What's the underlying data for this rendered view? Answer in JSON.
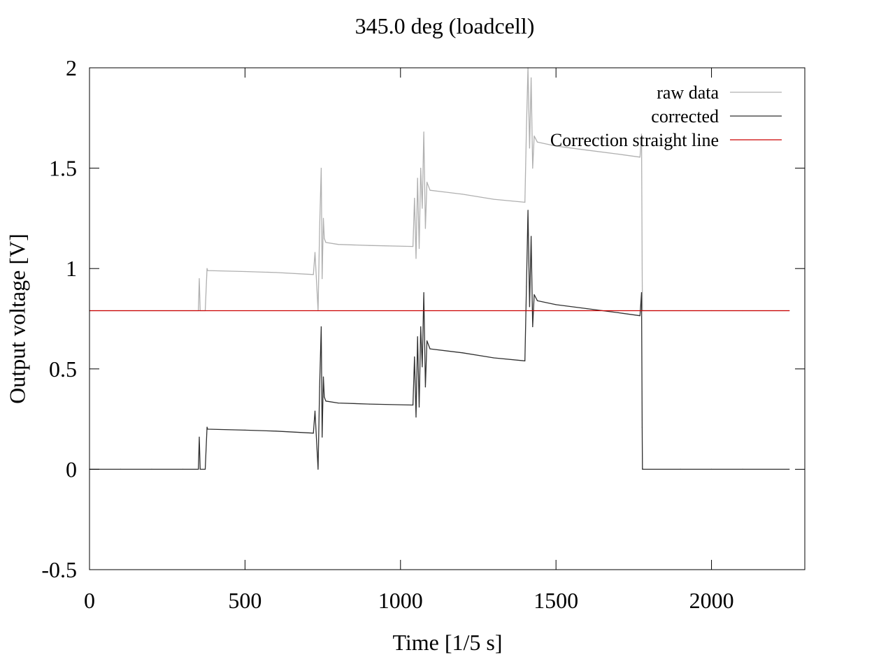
{
  "chart_data": {
    "type": "line",
    "title": "345.0 deg (loadcell)",
    "xlabel": "Time [1/5 s]",
    "ylabel": "Output voltage [V]",
    "xlim": [
      0,
      2300
    ],
    "ylim": [
      -0.5,
      2
    ],
    "xticks": [
      0,
      500,
      1000,
      1500,
      2000
    ],
    "xtick_labels": [
      "0",
      "500",
      "1000",
      "1500",
      "2000"
    ],
    "yticks": [
      -0.5,
      0,
      0.5,
      1,
      1.5,
      2
    ],
    "ytick_labels": [
      "-0.5",
      "0",
      "0.5",
      "1",
      "1.5",
      "2"
    ],
    "grid": false,
    "legend_position": "top-right",
    "series": [
      {
        "name": "raw data",
        "color": "#b0b0b0",
        "x": [
          0,
          350,
          353,
          356,
          372,
          378,
          380,
          500,
          600,
          720,
          725,
          735,
          740,
          745,
          748,
          752,
          755,
          760,
          800,
          900,
          1040,
          1045,
          1050,
          1055,
          1060,
          1065,
          1070,
          1075,
          1080,
          1085,
          1095,
          1200,
          1300,
          1400,
          1405,
          1410,
          1415,
          1420,
          1425,
          1430,
          1440,
          1500,
          1600,
          1700,
          1770,
          1775,
          1777,
          1778,
          1780,
          1900,
          2000,
          2100,
          2250
        ],
        "y": [
          0.79,
          0.79,
          0.95,
          0.79,
          0.79,
          1.0,
          0.99,
          0.985,
          0.98,
          0.97,
          1.08,
          0.79,
          1.2,
          1.5,
          0.95,
          1.25,
          1.15,
          1.13,
          1.12,
          1.115,
          1.11,
          1.35,
          1.05,
          1.45,
          1.1,
          1.5,
          1.3,
          1.68,
          1.2,
          1.43,
          1.39,
          1.37,
          1.345,
          1.33,
          1.7,
          2.0,
          1.6,
          1.95,
          1.5,
          1.66,
          1.63,
          1.61,
          1.59,
          1.57,
          1.555,
          1.67,
          1.0,
          0.79,
          0.79,
          0.79,
          0.79,
          0.79,
          0.79
        ]
      },
      {
        "name": "corrected",
        "color": "#303030",
        "x": [
          0,
          100,
          200,
          300,
          350,
          353,
          356,
          372,
          378,
          380,
          500,
          600,
          720,
          725,
          735,
          740,
          745,
          748,
          752,
          755,
          760,
          800,
          900,
          1040,
          1045,
          1050,
          1055,
          1060,
          1065,
          1070,
          1075,
          1080,
          1085,
          1095,
          1200,
          1300,
          1400,
          1405,
          1410,
          1415,
          1420,
          1425,
          1430,
          1440,
          1500,
          1600,
          1700,
          1770,
          1775,
          1777,
          1778,
          1780,
          1900,
          2000,
          2100,
          2250
        ],
        "y": [
          0.0,
          0.0,
          0.0,
          0.0,
          0.0,
          0.16,
          0.0,
          0.0,
          0.21,
          0.2,
          0.195,
          0.19,
          0.18,
          0.29,
          0.0,
          0.41,
          0.71,
          0.16,
          0.46,
          0.36,
          0.34,
          0.33,
          0.325,
          0.32,
          0.56,
          0.26,
          0.66,
          0.31,
          0.71,
          0.51,
          0.88,
          0.41,
          0.64,
          0.6,
          0.58,
          0.555,
          0.54,
          0.91,
          1.29,
          0.81,
          1.16,
          0.71,
          0.87,
          0.84,
          0.82,
          0.8,
          0.78,
          0.765,
          0.88,
          0.21,
          0.0,
          0.0,
          0.0,
          0.0,
          0.0,
          0.0
        ]
      },
      {
        "name": "Correction straight line",
        "color": "#cc0000",
        "x": [
          0,
          2250
        ],
        "y": [
          0.79,
          0.79
        ]
      }
    ]
  }
}
